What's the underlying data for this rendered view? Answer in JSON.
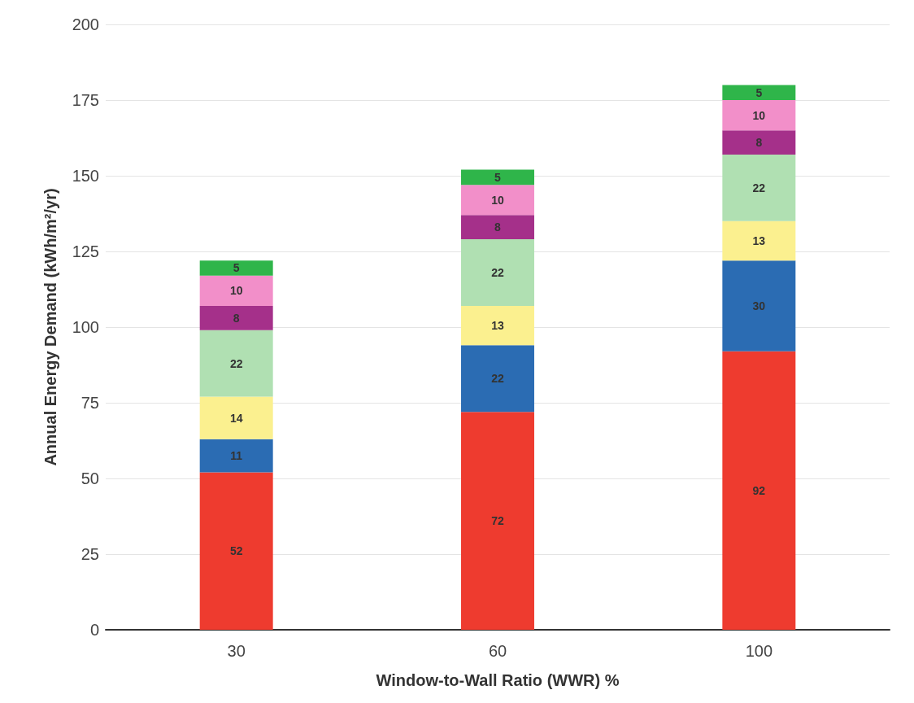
{
  "chart_data": {
    "type": "bar",
    "stacked": true,
    "xlabel": "Window-to-Wall Ratio (WWR) %",
    "ylabel": "Annual Energy Demand (kWh/m²/yr)",
    "categories": [
      "30",
      "60",
      "100"
    ],
    "series": [
      {
        "color": "#ee3b2f",
        "values": [
          52,
          72,
          92
        ]
      },
      {
        "color": "#2b6cb3",
        "values": [
          11,
          22,
          30
        ]
      },
      {
        "color": "#fbf08f",
        "values": [
          14,
          13,
          13
        ]
      },
      {
        "color": "#b0e0b2",
        "values": [
          22,
          22,
          22
        ]
      },
      {
        "color": "#a5308a",
        "values": [
          8,
          8,
          8
        ]
      },
      {
        "color": "#f28fc9",
        "values": [
          10,
          10,
          10
        ]
      },
      {
        "color": "#2fb54a",
        "values": [
          5,
          5,
          5
        ]
      }
    ],
    "ylim": [
      0,
      200
    ],
    "yticks": [
      0,
      25,
      50,
      75,
      100,
      125,
      150,
      175,
      200
    ],
    "grid": "y",
    "data_labels": true
  }
}
